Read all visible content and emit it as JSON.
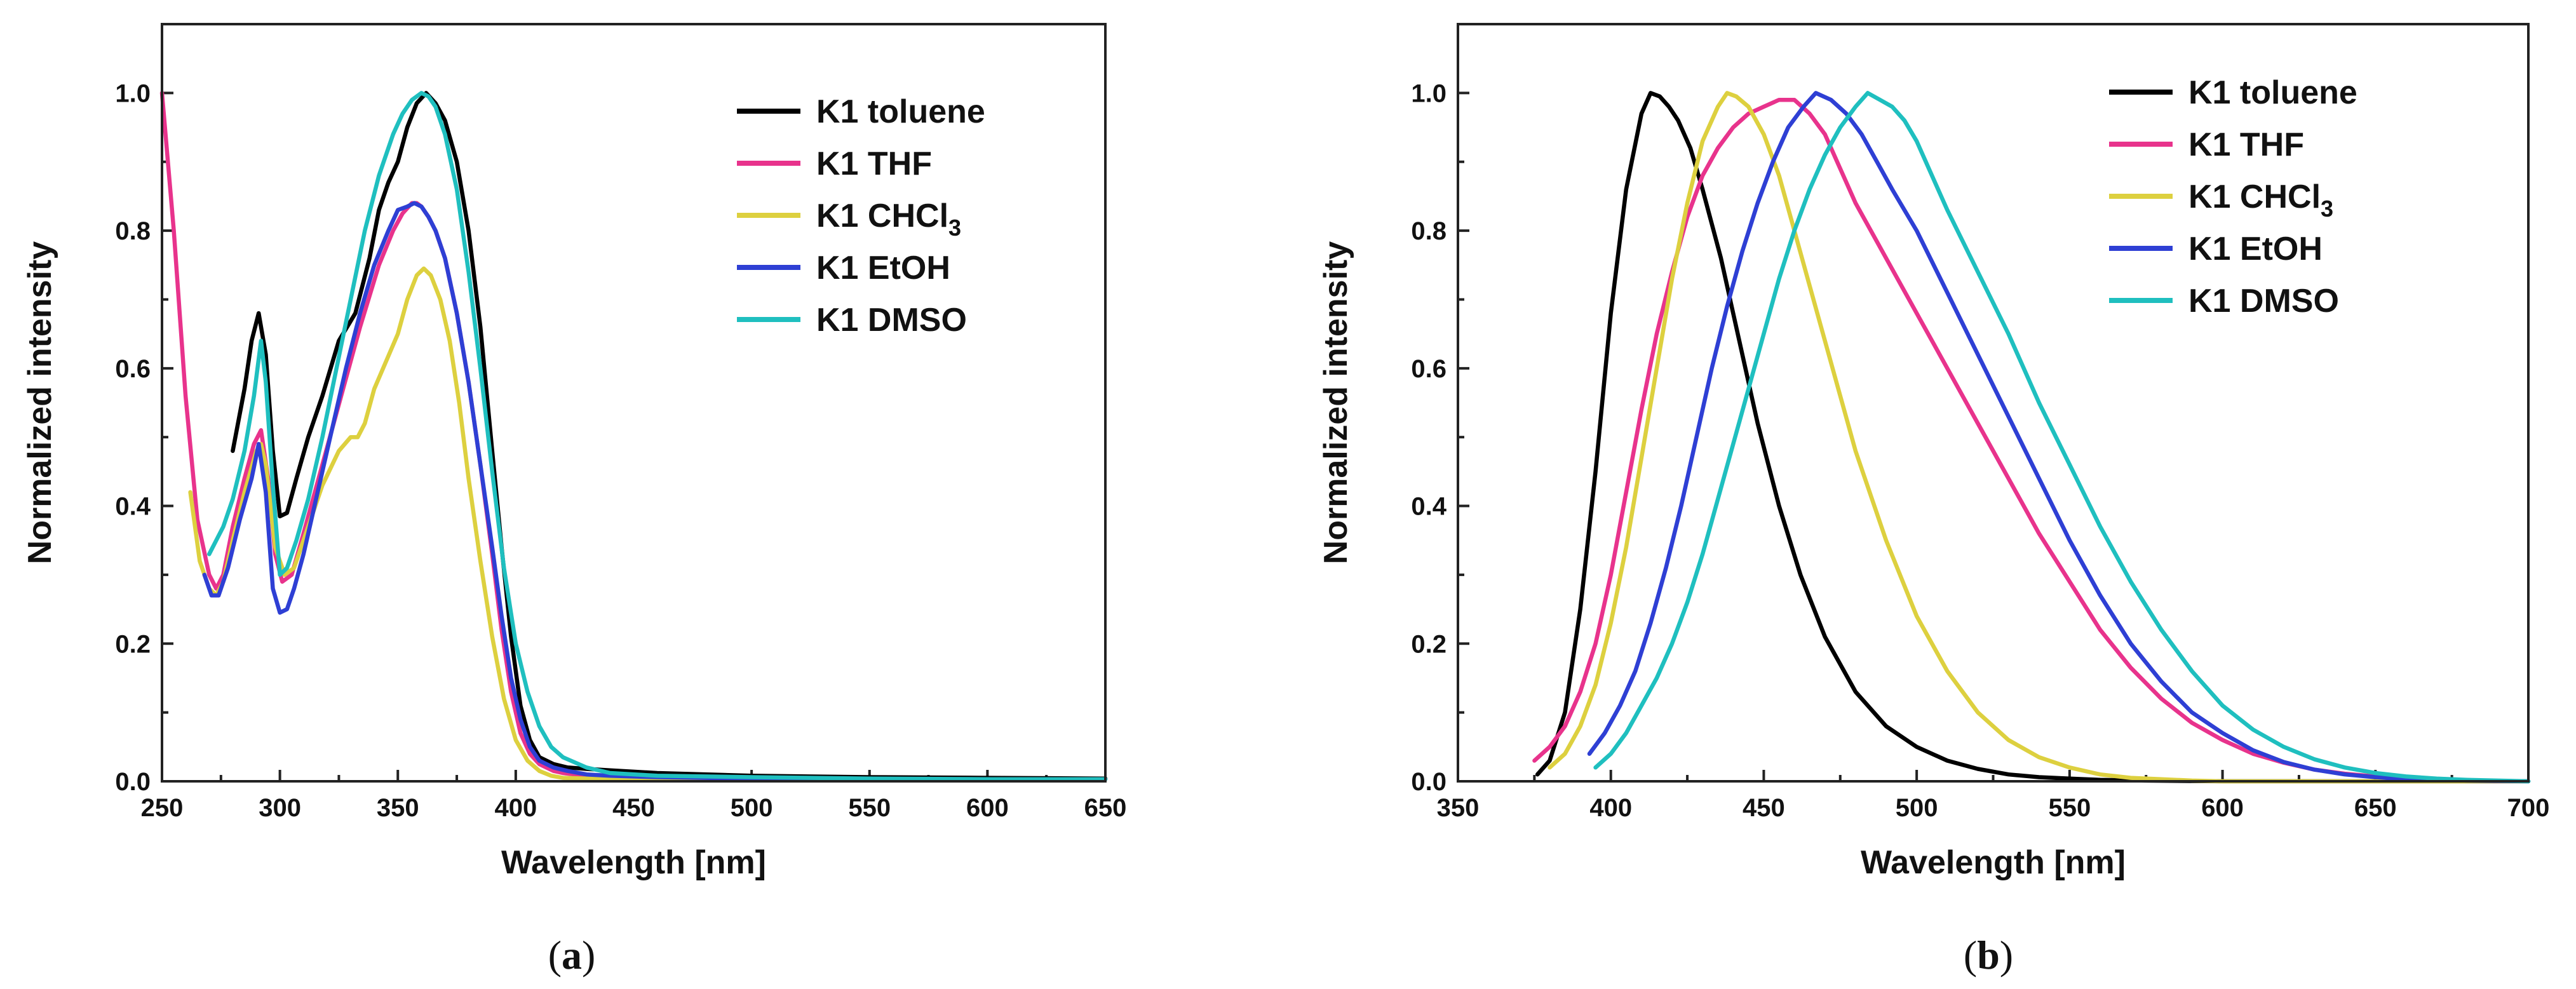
{
  "chart_data": [
    {
      "id": "a",
      "type": "line",
      "caption": {
        "open": "(",
        "letter": "a",
        "close": ")"
      },
      "xlabel": "Wavelength [nm]",
      "ylabel": "Normalized intensity",
      "xlim": [
        250,
        650
      ],
      "ylim": [
        0,
        1.1
      ],
      "xticks": [
        "250",
        "300",
        "350",
        "400",
        "450",
        "500",
        "550",
        "600",
        "650"
      ],
      "yticks": [
        "0.0",
        "0.2",
        "0.4",
        "0.6",
        "0.8",
        "1.0"
      ],
      "legend_position": "top-right",
      "series": [
        {
          "name": "K1 toluene",
          "name_main": "K1 toluene",
          "name_sub": "",
          "color": "#000000",
          "x": [
            280,
            285,
            288,
            291,
            294,
            297,
            300,
            303,
            307,
            312,
            318,
            325,
            332,
            338,
            342,
            346,
            350,
            354,
            358,
            362,
            366,
            370,
            375,
            380,
            385,
            390,
            394,
            398,
            402,
            406,
            410,
            416,
            422,
            430,
            440,
            460,
            500,
            550,
            600,
            650
          ],
          "y": [
            0.48,
            0.57,
            0.64,
            0.68,
            0.62,
            0.48,
            0.385,
            0.39,
            0.44,
            0.5,
            0.56,
            0.64,
            0.68,
            0.76,
            0.83,
            0.87,
            0.9,
            0.95,
            0.985,
            1.0,
            0.985,
            0.96,
            0.9,
            0.8,
            0.66,
            0.48,
            0.34,
            0.21,
            0.11,
            0.06,
            0.035,
            0.025,
            0.02,
            0.018,
            0.016,
            0.012,
            0.008,
            0.006,
            0.005,
            0.004
          ]
        },
        {
          "name": "K1 THF",
          "name_main": "K1 THF",
          "name_sub": "",
          "color": "#E8338C",
          "x": [
            250,
            255,
            260,
            265,
            270,
            273,
            276,
            280,
            285,
            289,
            292,
            295,
            298,
            301,
            305,
            310,
            318,
            326,
            334,
            342,
            348,
            352,
            356,
            358,
            360,
            363,
            366,
            370,
            375,
            380,
            385,
            390,
            394,
            398,
            402,
            406,
            410,
            416,
            420,
            430,
            440,
            460,
            500,
            550,
            600,
            650
          ],
          "y": [
            1.0,
            0.8,
            0.56,
            0.38,
            0.3,
            0.28,
            0.3,
            0.37,
            0.44,
            0.49,
            0.51,
            0.44,
            0.33,
            0.29,
            0.3,
            0.36,
            0.46,
            0.56,
            0.66,
            0.75,
            0.8,
            0.825,
            0.84,
            0.84,
            0.835,
            0.82,
            0.8,
            0.76,
            0.68,
            0.58,
            0.46,
            0.33,
            0.22,
            0.13,
            0.07,
            0.04,
            0.025,
            0.015,
            0.012,
            0.008,
            0.006,
            0.005,
            0.004,
            0.003,
            0.003,
            0.003
          ]
        },
        {
          "name": "K1 CHCl3",
          "name_main": "K1 CHCl",
          "name_sub": "3",
          "color": "#DDD03F",
          "x": [
            262,
            266,
            270,
            273,
            276,
            280,
            285,
            290,
            292,
            294,
            298,
            302,
            306,
            312,
            318,
            325,
            330,
            333,
            336,
            340,
            345,
            350,
            354,
            358,
            361,
            364,
            368,
            372,
            376,
            380,
            385,
            390,
            395,
            400,
            405,
            410,
            415,
            420,
            430,
            440,
            460,
            500,
            550,
            600,
            650
          ],
          "y": [
            0.42,
            0.32,
            0.28,
            0.27,
            0.29,
            0.35,
            0.42,
            0.48,
            0.49,
            0.46,
            0.34,
            0.3,
            0.31,
            0.37,
            0.43,
            0.48,
            0.5,
            0.5,
            0.52,
            0.57,
            0.61,
            0.65,
            0.7,
            0.735,
            0.745,
            0.735,
            0.7,
            0.64,
            0.55,
            0.44,
            0.32,
            0.21,
            0.12,
            0.06,
            0.03,
            0.015,
            0.008,
            0.005,
            0.004,
            0.003,
            0.003,
            0.003,
            0.003,
            0.003,
            0.003
          ]
        },
        {
          "name": "K1 EtOH",
          "name_main": "K1 EtOH",
          "name_sub": "",
          "color": "#2E3FD4",
          "x": [
            268,
            271,
            274,
            278,
            283,
            288,
            291,
            294,
            297,
            300,
            303,
            306,
            310,
            316,
            322,
            328,
            334,
            340,
            346,
            350,
            354,
            357,
            360,
            363,
            366,
            370,
            375,
            380,
            385,
            390,
            394,
            398,
            402,
            406,
            410,
            416,
            422,
            430,
            440,
            460,
            500,
            550,
            600,
            650
          ],
          "y": [
            0.3,
            0.27,
            0.27,
            0.31,
            0.38,
            0.44,
            0.49,
            0.42,
            0.28,
            0.245,
            0.25,
            0.28,
            0.33,
            0.42,
            0.51,
            0.6,
            0.68,
            0.75,
            0.8,
            0.83,
            0.835,
            0.84,
            0.835,
            0.82,
            0.8,
            0.76,
            0.68,
            0.58,
            0.46,
            0.34,
            0.24,
            0.15,
            0.09,
            0.05,
            0.03,
            0.02,
            0.015,
            0.01,
            0.008,
            0.006,
            0.004,
            0.003,
            0.003,
            0.003
          ]
        },
        {
          "name": "K1 DMSO",
          "name_main": "K1 DMSO",
          "name_sub": "",
          "color": "#1FBFBF",
          "x": [
            270,
            273,
            276,
            280,
            285,
            289,
            292,
            294,
            297,
            300,
            303,
            307,
            312,
            318,
            324,
            330,
            336,
            342,
            348,
            352,
            356,
            360,
            363,
            366,
            370,
            375,
            380,
            385,
            390,
            395,
            400,
            405,
            410,
            415,
            420,
            430,
            440,
            460,
            500,
            550,
            600,
            650
          ],
          "y": [
            0.33,
            0.35,
            0.37,
            0.41,
            0.48,
            0.56,
            0.64,
            0.58,
            0.43,
            0.3,
            0.31,
            0.35,
            0.41,
            0.5,
            0.6,
            0.7,
            0.8,
            0.88,
            0.94,
            0.97,
            0.99,
            1.0,
            0.995,
            0.98,
            0.94,
            0.86,
            0.74,
            0.6,
            0.45,
            0.31,
            0.2,
            0.13,
            0.08,
            0.05,
            0.035,
            0.02,
            0.012,
            0.008,
            0.006,
            0.004,
            0.003,
            0.003
          ]
        }
      ]
    },
    {
      "id": "b",
      "type": "line",
      "caption": {
        "open": "(",
        "letter": "b",
        "close": ")"
      },
      "xlabel": "Wavelength [nm]",
      "ylabel": "Normalized intensity",
      "xlim": [
        350,
        700
      ],
      "ylim": [
        0,
        1.1
      ],
      "xticks": [
        "350",
        "400",
        "450",
        "500",
        "550",
        "600",
        "650",
        "700"
      ],
      "yticks": [
        "0.0",
        "0.2",
        "0.4",
        "0.6",
        "0.8",
        "1.0"
      ],
      "legend_position": "top-right",
      "series": [
        {
          "name": "K1 toluene",
          "name_main": "K1 toluene",
          "name_sub": "",
          "color": "#000000",
          "x": [
            376,
            380,
            385,
            390,
            395,
            400,
            405,
            410,
            413,
            416,
            419,
            422,
            426,
            430,
            436,
            442,
            448,
            455,
            462,
            470,
            480,
            490,
            500,
            510,
            520,
            530,
            540,
            550,
            560,
            575,
            600,
            650,
            700
          ],
          "y": [
            0.01,
            0.03,
            0.1,
            0.25,
            0.45,
            0.68,
            0.86,
            0.97,
            1.0,
            0.995,
            0.98,
            0.96,
            0.92,
            0.86,
            0.76,
            0.64,
            0.52,
            0.4,
            0.3,
            0.21,
            0.13,
            0.08,
            0.05,
            0.03,
            0.018,
            0.01,
            0.006,
            0.004,
            0.002,
            0.001,
            0,
            0,
            0
          ]
        },
        {
          "name": "K1 THF",
          "name_main": "K1 THF",
          "name_sub": "",
          "color": "#E8338C",
          "x": [
            375,
            380,
            385,
            390,
            395,
            400,
            405,
            410,
            415,
            420,
            425,
            430,
            435,
            440,
            445,
            450,
            455,
            460,
            465,
            470,
            475,
            480,
            490,
            500,
            510,
            520,
            530,
            540,
            550,
            560,
            570,
            580,
            590,
            600,
            610,
            620,
            630,
            640,
            650,
            660,
            670,
            680,
            690,
            700
          ],
          "y": [
            0.03,
            0.05,
            0.08,
            0.13,
            0.2,
            0.3,
            0.42,
            0.54,
            0.65,
            0.74,
            0.82,
            0.88,
            0.92,
            0.95,
            0.97,
            0.98,
            0.99,
            0.99,
            0.97,
            0.94,
            0.89,
            0.84,
            0.76,
            0.68,
            0.6,
            0.52,
            0.44,
            0.36,
            0.29,
            0.22,
            0.165,
            0.12,
            0.085,
            0.06,
            0.04,
            0.027,
            0.017,
            0.011,
            0.007,
            0.004,
            0.002,
            0.001,
            0,
            0
          ]
        },
        {
          "name": "K1 CHCl3",
          "name_main": "K1 CHCl",
          "name_sub": "3",
          "color": "#DDD03F",
          "x": [
            380,
            385,
            390,
            395,
            400,
            405,
            410,
            415,
            420,
            425,
            430,
            435,
            438,
            441,
            445,
            450,
            455,
            460,
            465,
            470,
            475,
            480,
            490,
            500,
            510,
            520,
            530,
            540,
            550,
            560,
            570,
            580,
            590,
            600,
            620,
            650,
            700
          ],
          "y": [
            0.02,
            0.04,
            0.08,
            0.14,
            0.23,
            0.34,
            0.47,
            0.6,
            0.73,
            0.84,
            0.93,
            0.98,
            1.0,
            0.995,
            0.98,
            0.94,
            0.88,
            0.8,
            0.72,
            0.64,
            0.56,
            0.48,
            0.35,
            0.24,
            0.16,
            0.1,
            0.06,
            0.035,
            0.02,
            0.01,
            0.005,
            0.003,
            0.001,
            0,
            0,
            0,
            0
          ]
        },
        {
          "name": "K1 EtOH",
          "name_main": "K1 EtOH",
          "name_sub": "",
          "color": "#2E3FD4",
          "x": [
            393,
            398,
            403,
            408,
            413,
            418,
            423,
            428,
            433,
            438,
            443,
            448,
            453,
            458,
            463,
            467,
            472,
            477,
            482,
            487,
            492,
            500,
            510,
            520,
            530,
            540,
            550,
            560,
            570,
            580,
            590,
            600,
            610,
            620,
            630,
            640,
            650,
            660,
            680,
            700
          ],
          "y": [
            0.04,
            0.07,
            0.11,
            0.16,
            0.23,
            0.31,
            0.4,
            0.5,
            0.6,
            0.69,
            0.77,
            0.84,
            0.9,
            0.95,
            0.98,
            1.0,
            0.99,
            0.97,
            0.94,
            0.9,
            0.86,
            0.8,
            0.71,
            0.62,
            0.53,
            0.44,
            0.35,
            0.27,
            0.2,
            0.145,
            0.1,
            0.07,
            0.045,
            0.028,
            0.017,
            0.01,
            0.006,
            0.003,
            0.001,
            0
          ]
        },
        {
          "name": "K1 DMSO",
          "name_main": "K1 DMSO",
          "name_sub": "",
          "color": "#1FBFBF",
          "x": [
            395,
            400,
            405,
            410,
            415,
            420,
            425,
            430,
            435,
            440,
            445,
            450,
            455,
            460,
            465,
            470,
            475,
            480,
            484,
            488,
            492,
            496,
            500,
            505,
            510,
            520,
            530,
            540,
            550,
            560,
            570,
            580,
            590,
            600,
            610,
            620,
            630,
            640,
            650,
            660,
            670,
            680,
            690,
            700
          ],
          "y": [
            0.02,
            0.04,
            0.07,
            0.11,
            0.15,
            0.2,
            0.26,
            0.33,
            0.41,
            0.49,
            0.57,
            0.65,
            0.73,
            0.8,
            0.86,
            0.91,
            0.95,
            0.98,
            1.0,
            0.99,
            0.98,
            0.96,
            0.93,
            0.88,
            0.83,
            0.74,
            0.65,
            0.55,
            0.46,
            0.37,
            0.29,
            0.22,
            0.16,
            0.11,
            0.075,
            0.05,
            0.032,
            0.02,
            0.012,
            0.007,
            0.004,
            0.002,
            0.001,
            0
          ]
        }
      ]
    }
  ]
}
